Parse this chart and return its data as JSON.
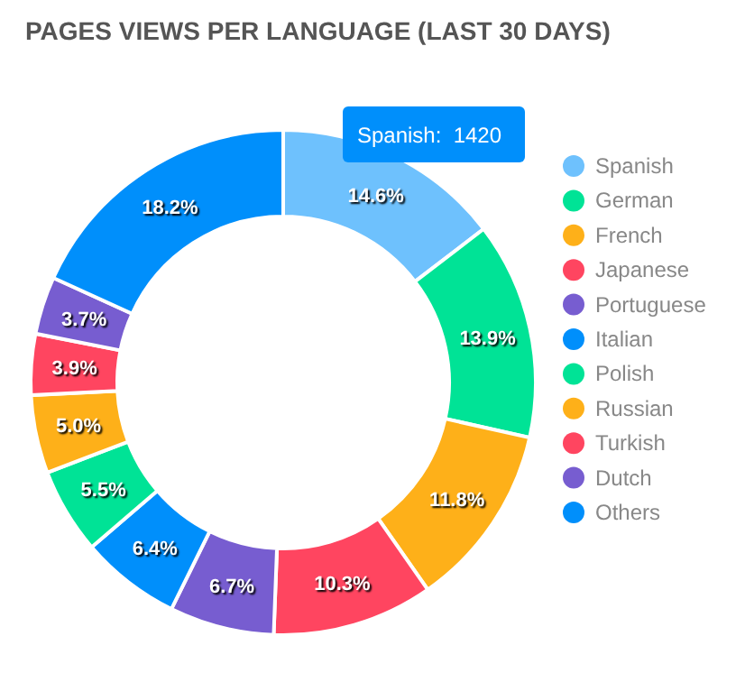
{
  "chart_data": {
    "type": "donut",
    "title": "PAGES VIEWS PER LANGUAGE (LAST 30 DAYS)",
    "categories": [
      "Spanish",
      "German",
      "French",
      "Japanese",
      "Portuguese",
      "Italian",
      "Polish",
      "Russian",
      "Turkish",
      "Dutch",
      "Others"
    ],
    "values": [
      14.6,
      13.9,
      11.8,
      10.3,
      6.7,
      6.4,
      5.5,
      5.0,
      3.9,
      3.7,
      18.2
    ],
    "colors": [
      "#6ec1fd",
      "#00e396",
      "#feb019",
      "#ff4560",
      "#775dd0",
      "#008ffb",
      "#00e396",
      "#feb019",
      "#ff4560",
      "#775dd0",
      "#008ffb"
    ],
    "value_labels": [
      "14.6%",
      "13.9%",
      "11.8%",
      "10.3%",
      "6.7%",
      "6.4%",
      "5.5%",
      "5.0%",
      "3.9%",
      "3.7%",
      "18.2%"
    ],
    "legend": "right",
    "annotations": [
      "Spanish:  1420"
    ]
  }
}
